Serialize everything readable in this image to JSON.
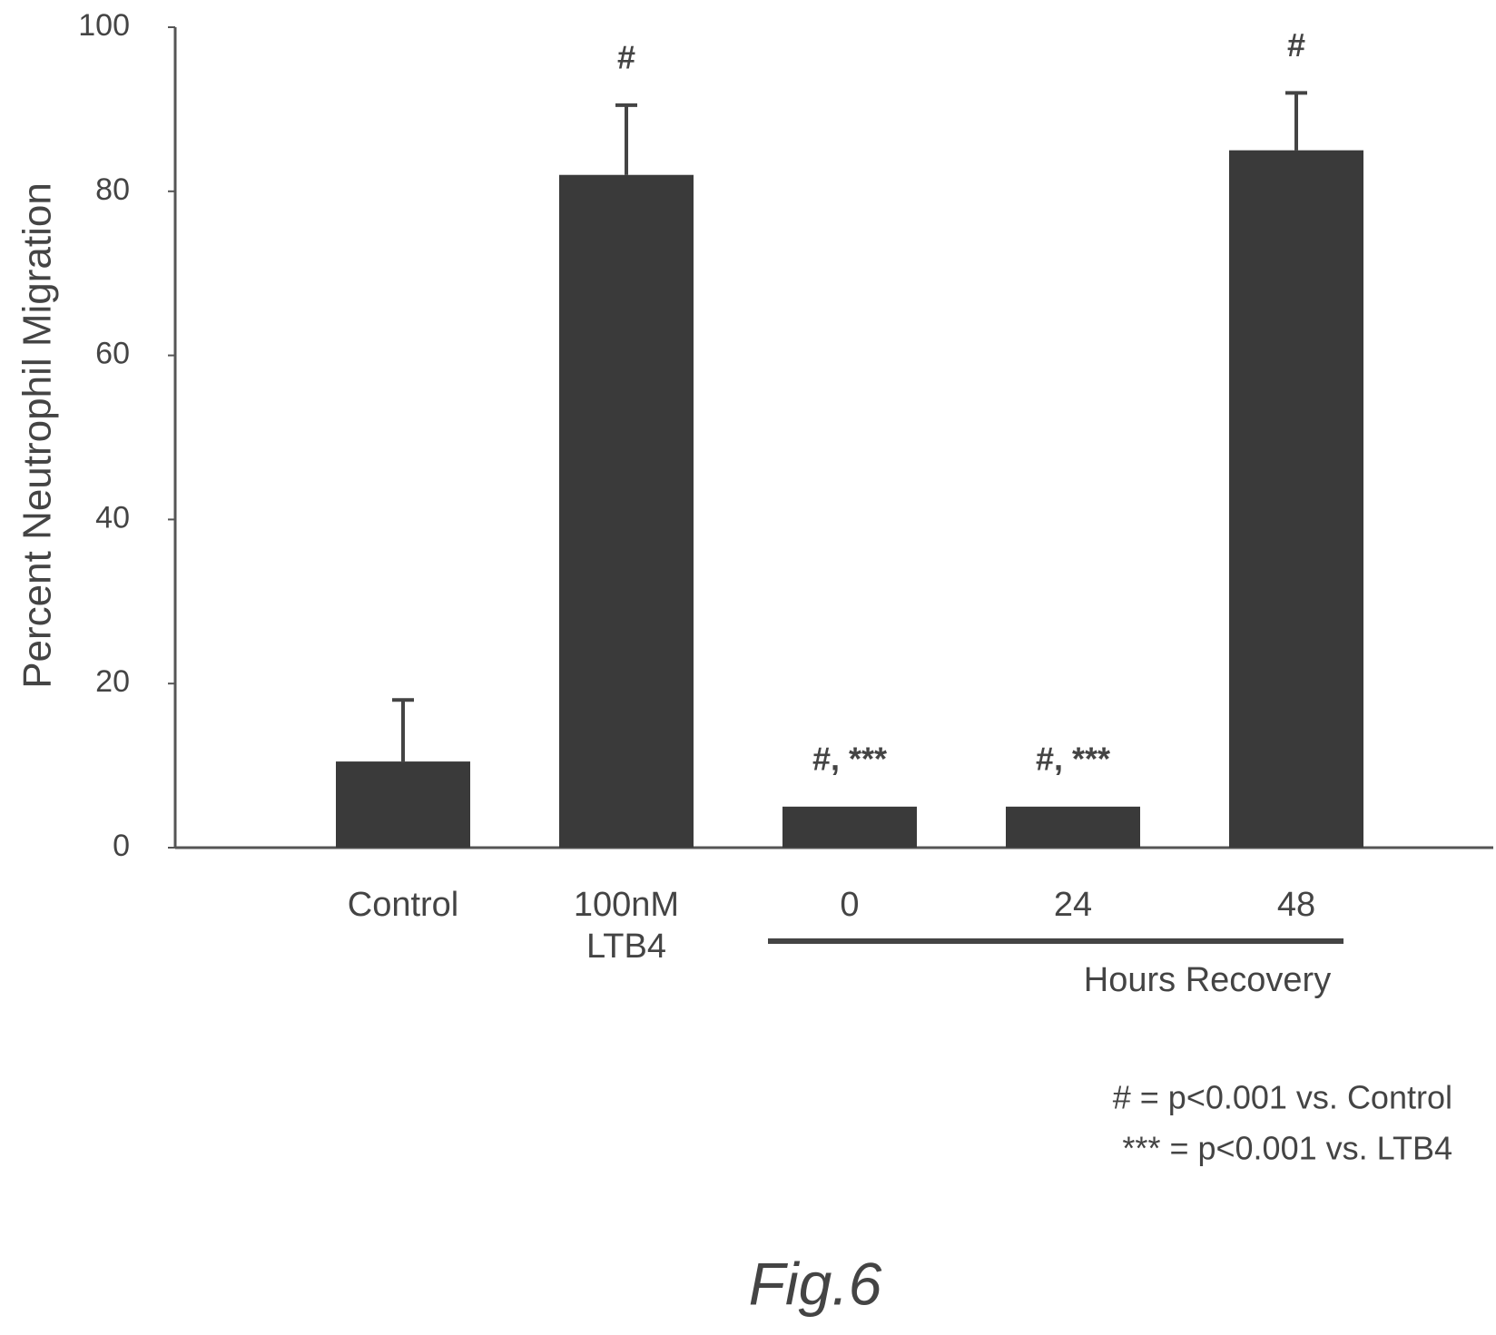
{
  "chart_data": {
    "type": "bar",
    "ylabel": "Percent Neutrophil Migration",
    "categories": [
      "Control",
      "100nM LTB4",
      "0",
      "24",
      "48"
    ],
    "values": [
      10.5,
      82,
      5,
      5,
      85
    ],
    "errors": [
      7.5,
      8.5,
      null,
      null,
      7
    ],
    "bar_annotations": [
      null,
      "#",
      "#, ***",
      "#, ***",
      "#"
    ],
    "group_label": "Hours Recovery",
    "color": "#3a3a3a",
    "ylim": [
      0,
      100
    ],
    "yticks": [
      0,
      20,
      40,
      60,
      80,
      100
    ],
    "footnotes": [
      "# = p<0.001 vs. Control",
      "*** = p<0.001 vs. LTB4"
    ],
    "caption": "Fig.6"
  }
}
